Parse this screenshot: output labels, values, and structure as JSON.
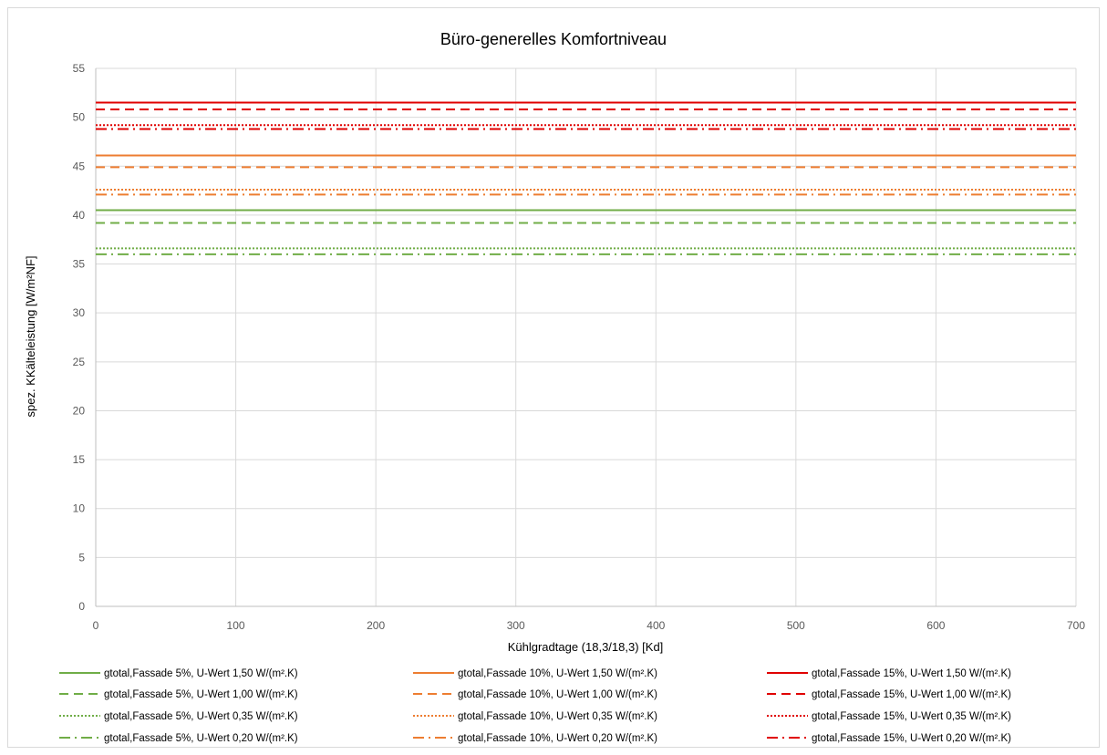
{
  "chart_data": {
    "type": "line",
    "title": "Büro-generelles Komfortniveau",
    "xlabel": "Kühlgradtage (18,3/18,3) [Kd]",
    "ylabel": "spez. KKälteleistung [W/m²NF]",
    "xlim": [
      0,
      700
    ],
    "ylim": [
      0,
      55
    ],
    "x_ticks": [
      "0",
      "100",
      "200",
      "300",
      "400",
      "500",
      "600",
      "700"
    ],
    "y_ticks": [
      "0",
      "5",
      "10",
      "15",
      "20",
      "25",
      "30",
      "35",
      "40",
      "45",
      "50",
      "55"
    ],
    "grid": true,
    "legend_position": "bottom",
    "x": [
      0,
      700
    ],
    "series": [
      {
        "name": "gtotal,Fassade 5%, U-Wert 1,50 W/(m².K)",
        "values": [
          40.5,
          40.5
        ],
        "color": "#70ad47",
        "dash": "solid"
      },
      {
        "name": "gtotal,Fassade 10%, U-Wert 1,50 W/(m².K)",
        "values": [
          46.1,
          46.1
        ],
        "color": "#ed7d31",
        "dash": "solid"
      },
      {
        "name": "gtotal,Fassade 15%, U-Wert 1,50 W/(m².K)",
        "values": [
          51.5,
          51.5
        ],
        "color": "#e00000",
        "dash": "solid"
      },
      {
        "name": "gtotal,Fassade 5%, U-Wert 1,00 W/(m².K)",
        "values": [
          39.2,
          39.2
        ],
        "color": "#70ad47",
        "dash": "dash"
      },
      {
        "name": "gtotal,Fassade 10%, U-Wert 1,00 W/(m².K)",
        "values": [
          44.9,
          44.9
        ],
        "color": "#ed7d31",
        "dash": "dash"
      },
      {
        "name": "gtotal,Fassade 15%, U-Wert 1,00 W/(m².K)",
        "values": [
          50.8,
          50.8
        ],
        "color": "#e00000",
        "dash": "dash"
      },
      {
        "name": "gtotal,Fassade 5%, U-Wert 0,35 W/(m².K)",
        "values": [
          36.6,
          36.6
        ],
        "color": "#70ad47",
        "dash": "dot"
      },
      {
        "name": "gtotal,Fassade 10%, U-Wert 0,35 W/(m².K)",
        "values": [
          42.6,
          42.6
        ],
        "color": "#ed7d31",
        "dash": "dot"
      },
      {
        "name": "gtotal,Fassade 15%, U-Wert 0,35 W/(m².K)",
        "values": [
          49.2,
          49.2
        ],
        "color": "#e00000",
        "dash": "dot"
      },
      {
        "name": "gtotal,Fassade 5%, U-Wert 0,20 W/(m².K)",
        "values": [
          36.0,
          36.0
        ],
        "color": "#70ad47",
        "dash": "dashdot"
      },
      {
        "name": "gtotal,Fassade 10%, U-Wert 0,20 W/(m².K)",
        "values": [
          42.1,
          42.1
        ],
        "color": "#ed7d31",
        "dash": "dashdot"
      },
      {
        "name": "gtotal,Fassade 15%, U-Wert 0,20 W/(m².K)",
        "values": [
          48.8,
          48.8
        ],
        "color": "#e00000",
        "dash": "dashdot"
      }
    ]
  }
}
